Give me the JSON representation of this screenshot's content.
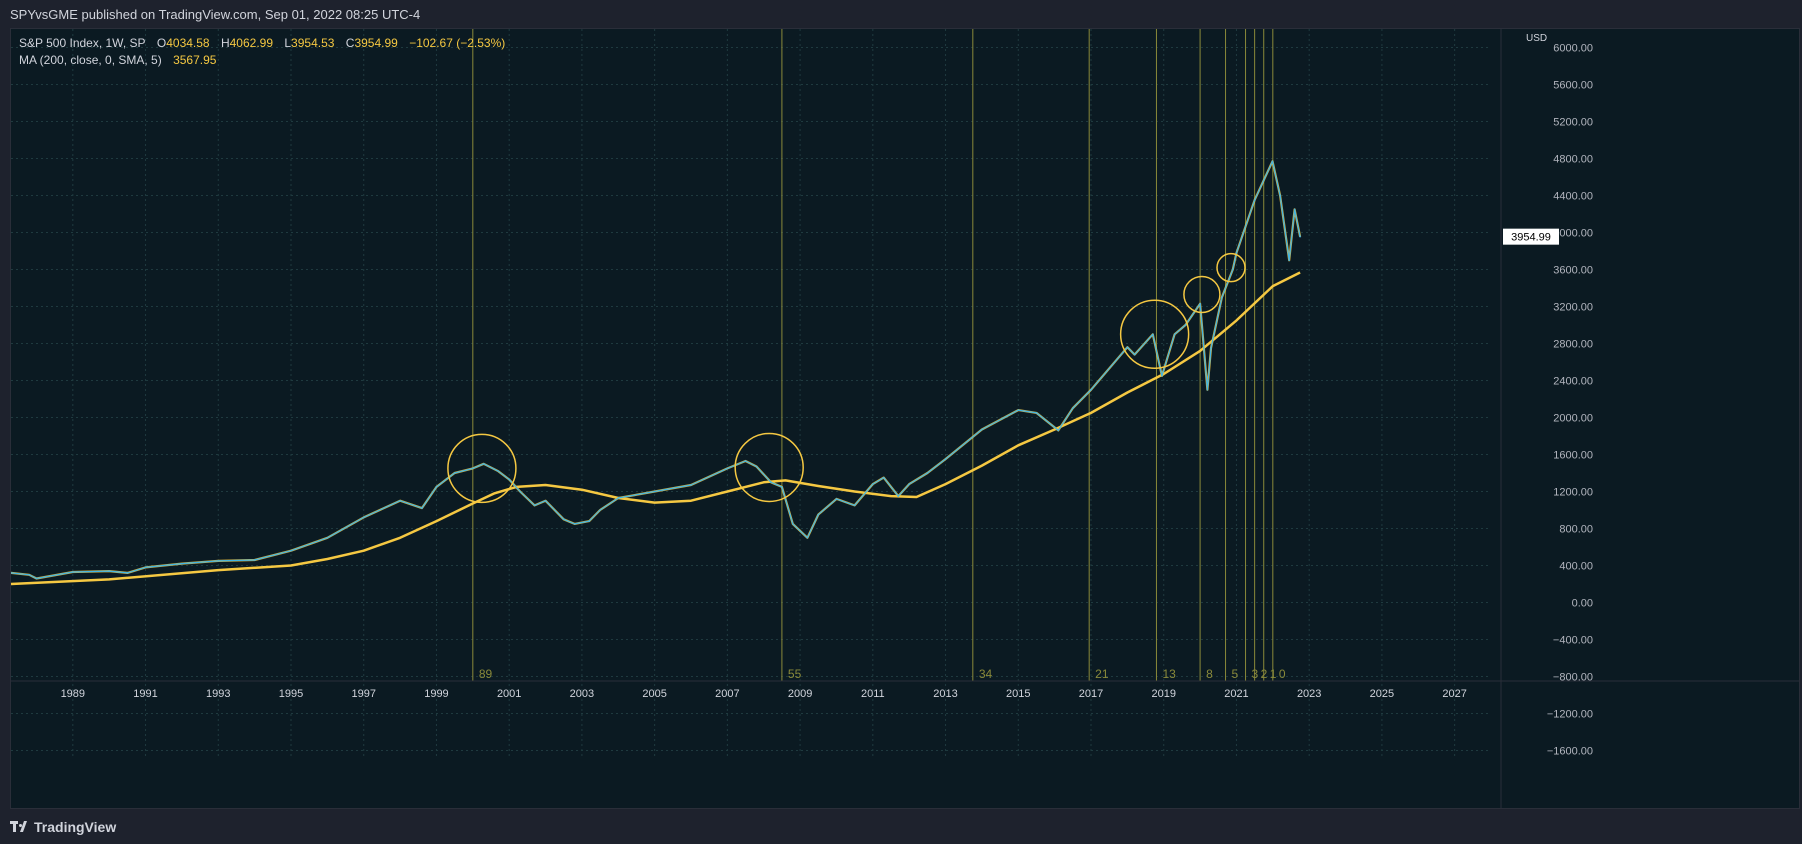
{
  "header": {
    "published": "SPYvsGME published on TradingView.com, Sep 01, 2022 08:25 UTC-4"
  },
  "legend": {
    "symbol": "S&P 500 Index, 1W, SP",
    "o_label": "O",
    "o_value": "4034.58",
    "h_label": "H",
    "h_value": "4062.99",
    "l_label": "L",
    "l_value": "3954.53",
    "c_label": "C",
    "c_value": "3954.99",
    "change": "−102.67 (−2.53%)",
    "ma_label": "MA (200, close, 0, SMA, 5)",
    "ma_value": "3567.95"
  },
  "footer": {
    "brand": "TradingView"
  },
  "colors": {
    "background": "#0b1a22",
    "price_line": "#41b6e6",
    "price_wick": "#f5c842",
    "ma_line": "#f5c842",
    "fib_lines": "#8a8a3a",
    "circles": "#f5c842"
  },
  "chart_data": {
    "type": "line",
    "title": "S&P 500 Index, 1W, SP",
    "currency": "USD",
    "current_price_label": "3954.99",
    "y_ticks": [
      "6000.00",
      "5600.00",
      "5200.00",
      "4800.00",
      "4400.00",
      "4000.00",
      "3600.00",
      "3200.00",
      "2800.00",
      "2400.00",
      "2000.00",
      "1600.00",
      "1200.00",
      "800.00",
      "400.00",
      "0.00",
      "−400.00",
      "−800.00",
      "−1200.00",
      "−1600.00"
    ],
    "y_tick_values": [
      6000,
      5600,
      5200,
      4800,
      4400,
      4000,
      3600,
      3200,
      2800,
      2400,
      2000,
      1600,
      1200,
      800,
      400,
      0,
      -400,
      -800,
      -1200,
      -1600
    ],
    "ylim": [
      -1800,
      6200
    ],
    "x_ticks": [
      "1989",
      "1991",
      "1993",
      "1995",
      "1997",
      "1999",
      "2001",
      "2003",
      "2005",
      "2007",
      "2009",
      "2011",
      "2013",
      "2015",
      "2017",
      "2019",
      "2021",
      "2023",
      "2025",
      "2027"
    ],
    "xlim": [
      1987.3,
      2028.0
    ],
    "series": [
      {
        "name": "S&P 500",
        "x": [
          1987.3,
          1987.8,
          1988.0,
          1989.0,
          1990.0,
          1990.5,
          1991.0,
          1992.0,
          1993.0,
          1994.0,
          1995.0,
          1996.0,
          1997.0,
          1998.0,
          1998.6,
          1999.0,
          1999.5,
          2000.0,
          2000.3,
          2000.7,
          2001.0,
          2001.3,
          2001.7,
          2002.0,
          2002.5,
          2002.8,
          2003.2,
          2003.5,
          2004.0,
          2005.0,
          2006.0,
          2007.0,
          2007.5,
          2007.8,
          2008.2,
          2008.5,
          2008.8,
          2009.2,
          2009.5,
          2010.0,
          2010.5,
          2011.0,
          2011.3,
          2011.7,
          2012.0,
          2012.5,
          2013.0,
          2014.0,
          2015.0,
          2015.5,
          2016.1,
          2016.5,
          2017.0,
          2018.0,
          2018.2,
          2018.7,
          2018.95,
          2019.3,
          2019.6,
          2020.0,
          2020.2,
          2020.3,
          2020.6,
          2020.9,
          2021.0,
          2021.5,
          2021.99,
          2022.2,
          2022.45,
          2022.6,
          2022.75
        ],
        "values": [
          320,
          300,
          260,
          330,
          340,
          320,
          380,
          420,
          450,
          460,
          560,
          700,
          920,
          1100,
          1020,
          1250,
          1400,
          1450,
          1500,
          1420,
          1330,
          1200,
          1050,
          1100,
          900,
          850,
          880,
          1000,
          1130,
          1200,
          1270,
          1450,
          1530,
          1470,
          1300,
          1250,
          850,
          700,
          950,
          1120,
          1050,
          1280,
          1350,
          1150,
          1280,
          1400,
          1550,
          1870,
          2080,
          2050,
          1860,
          2100,
          2300,
          2760,
          2680,
          2900,
          2450,
          2900,
          3000,
          3230,
          2300,
          2750,
          3300,
          3600,
          3780,
          4350,
          4770,
          4400,
          3700,
          4250,
          3955
        ]
      },
      {
        "name": "MA (200, close, 0, SMA, 5)",
        "x": [
          1987.3,
          1990.0,
          1993.0,
          1995.0,
          1996.0,
          1997.0,
          1998.0,
          1999.0,
          2000.0,
          2000.6,
          2001.2,
          2002.0,
          2003.0,
          2004.0,
          2005.0,
          2006.0,
          2007.0,
          2008.0,
          2008.6,
          2009.5,
          2010.5,
          2011.5,
          2012.2,
          2013.0,
          2014.0,
          2015.0,
          2016.0,
          2017.0,
          2018.0,
          2019.0,
          2020.0,
          2021.0,
          2022.0,
          2022.75
        ],
        "values": [
          200,
          250,
          350,
          400,
          470,
          560,
          700,
          880,
          1070,
          1180,
          1250,
          1270,
          1220,
          1130,
          1080,
          1100,
          1200,
          1300,
          1320,
          1260,
          1200,
          1150,
          1140,
          1280,
          1480,
          1700,
          1870,
          2050,
          2270,
          2470,
          2720,
          3050,
          3420,
          3568
        ]
      }
    ],
    "fib_time_labels": [
      "89",
      "55",
      "34",
      "21",
      "13",
      "8",
      "5",
      "3",
      "2",
      "1",
      "0"
    ],
    "fib_time_x": [
      2000.0,
      2008.5,
      2013.75,
      2016.95,
      2018.8,
      2020.0,
      2020.7,
      2021.25,
      2021.5,
      2021.75,
      2022.0
    ],
    "annotations": [
      {
        "type": "circle",
        "x": 2000.25,
        "y": 1450
      },
      {
        "type": "circle",
        "x": 2008.15,
        "y": 1460
      },
      {
        "type": "circle",
        "x": 2018.75,
        "y": 2900
      },
      {
        "type": "circle",
        "x": 2020.05,
        "y": 3330
      },
      {
        "type": "circle",
        "x": 2020.85,
        "y": 3620
      }
    ]
  }
}
